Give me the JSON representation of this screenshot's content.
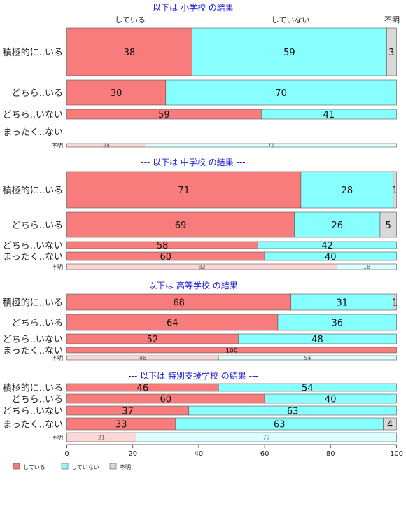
{
  "colors": {
    "している": "#f87c7c",
    "していない": "#87ffff",
    "不明": "#d9d9d9",
    "title": "#1f1fd1",
    "stroke": "#555555"
  },
  "chart_data": {
    "type": "bar",
    "orientation": "horizontal-stacked-percent",
    "xlim": [
      0,
      100
    ],
    "xticks": [
      0,
      20,
      40,
      60,
      80,
      100
    ],
    "column_headers": [
      "している",
      "していない",
      "不明"
    ],
    "legend": {
      "position": "bottom-left",
      "items": [
        "している",
        "していない",
        "不明"
      ]
    },
    "series_names": [
      "している",
      "していない",
      "不明"
    ],
    "panels": [
      {
        "title": "--- 以下は 小学校 の結果 ---",
        "rows": [
          {
            "label": "積極的に..いる",
            "values": [
              38,
              59,
              3
            ]
          },
          {
            "label": "どちら..いる",
            "values": [
              30,
              70,
              0
            ]
          },
          {
            "label": "どちら..いない",
            "values": [
              59,
              41,
              0
            ]
          },
          {
            "label": "まったく..ない",
            "values": []
          },
          {
            "label": "不明",
            "values": [
              24,
              76,
              0
            ]
          }
        ]
      },
      {
        "title": "--- 以下は 中学校 の結果 ---",
        "rows": [
          {
            "label": "積極的に..いる",
            "values": [
              71,
              28,
              1
            ]
          },
          {
            "label": "どちら..いる",
            "values": [
              69,
              26,
              5
            ]
          },
          {
            "label": "どちら..いない",
            "values": [
              58,
              42,
              0
            ]
          },
          {
            "label": "まったく..ない",
            "values": [
              60,
              40,
              0
            ]
          },
          {
            "label": "不明",
            "values": [
              82,
              18,
              0
            ]
          }
        ]
      },
      {
        "title": "--- 以下は 高等学校 の結果 ---",
        "rows": [
          {
            "label": "積極的に..いる",
            "values": [
              68,
              31,
              1
            ]
          },
          {
            "label": "どちら..いる",
            "values": [
              64,
              36,
              0
            ]
          },
          {
            "label": "どちら..いない",
            "values": [
              52,
              48,
              0
            ]
          },
          {
            "label": "まったく..ない",
            "values": [
              100,
              0,
              0
            ]
          },
          {
            "label": "不明",
            "values": [
              46,
              54,
              0
            ]
          }
        ]
      },
      {
        "title": "--- 以下は 特別支援学校 の結果 ---",
        "rows": [
          {
            "label": "積極的に..いる",
            "values": [
              46,
              54,
              0
            ]
          },
          {
            "label": "どちら..いる",
            "values": [
              60,
              40,
              0
            ]
          },
          {
            "label": "どちら..いない",
            "values": [
              37,
              63,
              0
            ]
          },
          {
            "label": "まったく..ない",
            "values": [
              33,
              63,
              4
            ]
          },
          {
            "label": "不明",
            "values": [
              21,
              79,
              0
            ]
          }
        ]
      }
    ]
  }
}
